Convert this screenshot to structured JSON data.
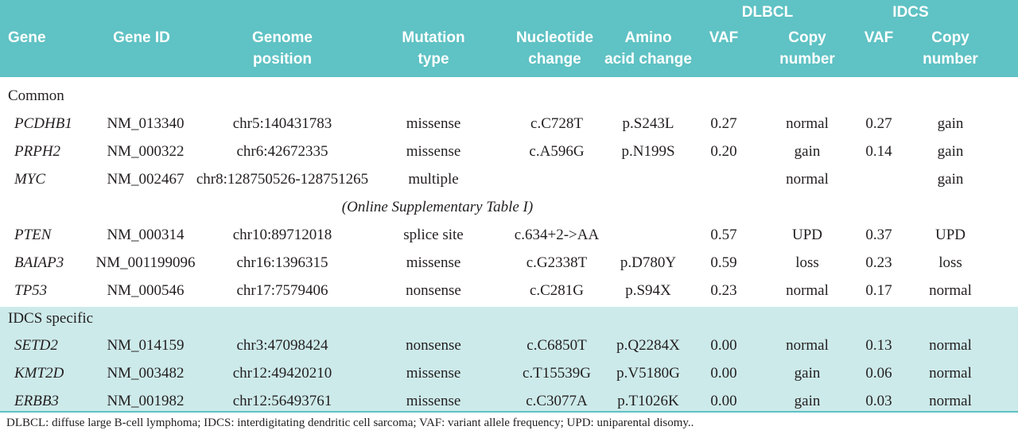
{
  "header": {
    "group_dlbcl": "DLBCL",
    "group_idcs": "IDCS",
    "gene": "Gene",
    "gene_id": "Gene ID",
    "genome_position_1": "Genome",
    "genome_position_2": "position",
    "mutation_type_1": "Mutation",
    "mutation_type_2": "type",
    "nucleotide_1": "Nucleotide",
    "nucleotide_2": "change",
    "amino_1": "Amino",
    "amino_2": "acid change",
    "vaf_dlbcl": "VAF",
    "copy_dlbcl_1": "Copy",
    "copy_dlbcl_2": "number",
    "vaf_idcs": "VAF",
    "copy_idcs_1": "Copy",
    "copy_idcs_2": "number"
  },
  "sections": {
    "common": "Common",
    "idcs_specific": "IDCS specific"
  },
  "note": "(Online Supplementary Table I)",
  "rows": [
    {
      "gene": "PCDHB1",
      "gene_id": "NM_013340",
      "position": "chr5:140431783",
      "mutation": "missense",
      "nucleotide": "c.C728T",
      "amino": "p.S243L",
      "vaf_d": "0.27",
      "copy_d": "normal",
      "vaf_i": "0.27",
      "copy_i": "gain"
    },
    {
      "gene": "PRPH2",
      "gene_id": "NM_000322",
      "position": "chr6:42672335",
      "mutation": "missense",
      "nucleotide": "c.A596G",
      "amino": "p.N199S",
      "vaf_d": "0.20",
      "copy_d": "gain",
      "vaf_i": "0.14",
      "copy_i": "gain"
    },
    {
      "gene": "MYC",
      "gene_id": "NM_002467",
      "position": "chr8:128750526-128751265",
      "mutation": "multiple",
      "nucleotide": "",
      "amino": "",
      "vaf_d": "",
      "copy_d": "normal",
      "vaf_i": "",
      "copy_i": "gain"
    },
    {
      "gene": "PTEN",
      "gene_id": "NM_000314",
      "position": "chr10:89712018",
      "mutation": "splice site",
      "nucleotide": "c.634+2->AA",
      "amino": "",
      "vaf_d": "0.57",
      "copy_d": "UPD",
      "vaf_i": "0.37",
      "copy_i": "UPD"
    },
    {
      "gene": "BAIAP3",
      "gene_id": "NM_001199096",
      "position": "chr16:1396315",
      "mutation": "missense",
      "nucleotide": "c.G2338T",
      "amino": "p.D780Y",
      "vaf_d": "0.59",
      "copy_d": "loss",
      "vaf_i": "0.23",
      "copy_i": "loss"
    },
    {
      "gene": "TP53",
      "gene_id": "NM_000546",
      "position": "chr17:7579406",
      "mutation": "nonsense",
      "nucleotide": "c.C281G",
      "amino": "p.S94X",
      "vaf_d": "0.23",
      "copy_d": "normal",
      "vaf_i": "0.17",
      "copy_i": "normal"
    },
    {
      "gene": "SETD2",
      "gene_id": "NM_014159",
      "position": "chr3:47098424",
      "mutation": "nonsense",
      "nucleotide": "c.C6850T",
      "amino": "p.Q2284X",
      "vaf_d": "0.00",
      "copy_d": "normal",
      "vaf_i": "0.13",
      "copy_i": "normal"
    },
    {
      "gene": "KMT2D",
      "gene_id": "NM_003482",
      "position": "chr12:49420210",
      "mutation": "missense",
      "nucleotide": "c.T15539G",
      "amino": "p.V5180G",
      "vaf_d": "0.00",
      "copy_d": "gain",
      "vaf_i": "0.06",
      "copy_i": "normal"
    },
    {
      "gene": "ERBB3",
      "gene_id": "NM_001982",
      "position": "chr12:56493761",
      "mutation": "missense",
      "nucleotide": "c.C3077A",
      "amino": "p.T1026K",
      "vaf_d": "0.00",
      "copy_d": "gain",
      "vaf_i": "0.03",
      "copy_i": "normal"
    }
  ],
  "footnote": "DLBCL: diffuse large B-cell lymphoma; IDCS: interdigitating dendritic cell sarcoma; VAF: variant allele frequency; UPD: uniparental disomy.."
}
